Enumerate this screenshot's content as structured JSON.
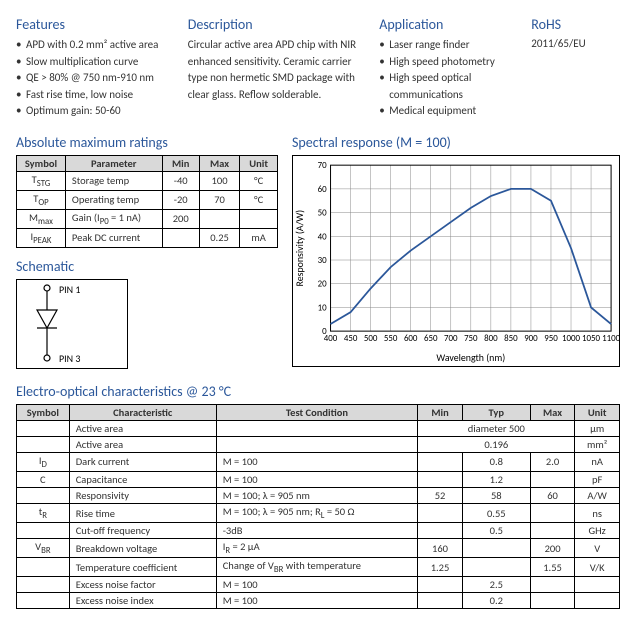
{
  "top": {
    "features": {
      "title": "Features",
      "items": [
        "APD with 0.2 mm² active area",
        "Slow multiplication curve",
        "QE > 80% @ 750 nm-910 nm",
        "Fast rise time, low noise",
        "Optimum gain: 50-60"
      ]
    },
    "description": {
      "title": "Description",
      "body": "Circular active area APD chip with NIR enhanced sensitivity. Ceramic carrier type non hermetic SMD package with clear glass. Reflow solderable."
    },
    "application": {
      "title": "Application",
      "items": [
        "Laser range finder",
        "High speed photometry",
        "High speed optical communications",
        "Medical equipment"
      ]
    },
    "rohs": {
      "title": "RoHS",
      "value": "2011/65/EU"
    }
  },
  "amr": {
    "title": "Absolute maximum ratings",
    "headers": {
      "symbol": "Symbol",
      "parameter": "Parameter",
      "min": "Min",
      "max": "Max",
      "unit": "Unit"
    },
    "rows": [
      {
        "symbol_html": "T<sub>STG</sub>",
        "parameter": "Storage temp",
        "min": "-40",
        "max": "100",
        "unit": "°C"
      },
      {
        "symbol_html": "T<sub>OP</sub>",
        "parameter": "Operating temp",
        "min": "-20",
        "max": "70",
        "unit": "°C"
      },
      {
        "symbol_html": "M<sub>max</sub>",
        "parameter_html": "Gain (I<sub>P0</sub> = 1 nA)",
        "min": "200",
        "max": "",
        "unit": ""
      },
      {
        "symbol_html": "I<sub>PEAK</sub>",
        "parameter": "Peak DC current",
        "min": "",
        "max": "0.25",
        "unit": "mA"
      }
    ]
  },
  "schematic": {
    "title": "Schematic",
    "pin1": "PIN 1",
    "pin3": "PIN 3"
  },
  "chart": {
    "title": "Spectral response (M = 100)",
    "xlabel": "Wavelength (nm)",
    "ylabel": "Responsivity (A/W)",
    "xlim": [
      400,
      1100
    ],
    "ylim": [
      0,
      70
    ],
    "xtick_step": 50,
    "ytick_step": 10,
    "line_color": "#2b579a",
    "grid_color": "#888888",
    "axis_color": "#000000",
    "font_size": 9,
    "points": [
      [
        400,
        3
      ],
      [
        450,
        8
      ],
      [
        500,
        18
      ],
      [
        550,
        27
      ],
      [
        600,
        34
      ],
      [
        650,
        40
      ],
      [
        700,
        46
      ],
      [
        750,
        52
      ],
      [
        800,
        57
      ],
      [
        850,
        60
      ],
      [
        900,
        60
      ],
      [
        950,
        55
      ],
      [
        1000,
        35
      ],
      [
        1050,
        10
      ],
      [
        1100,
        3
      ]
    ]
  },
  "eo": {
    "title": "Electro-optical characteristics @ 23 °C",
    "headers": {
      "symbol": "Symbol",
      "char": "Characteristic",
      "tc": "Test Condition",
      "min": "Min",
      "typ": "Typ",
      "max": "Max",
      "unit": "Unit"
    },
    "rows": [
      {
        "symbol": "",
        "char": "Active area",
        "tc": "",
        "min_colspan": 3,
        "typ_html": "diameter 500",
        "unit": "μm"
      },
      {
        "symbol": "",
        "char": "Active area",
        "tc": "",
        "min_colspan": 3,
        "typ_html": "0.196",
        "unit_html": "mm²"
      },
      {
        "symbol_html": "I<sub>D</sub>",
        "char": "Dark current",
        "tc": "M = 100",
        "min": "",
        "typ": "0.8",
        "max": "2.0",
        "unit": "nA"
      },
      {
        "symbol": "C",
        "char": "Capacitance",
        "tc": "M = 100",
        "min": "",
        "typ": "1.2",
        "max": "",
        "unit": "pF"
      },
      {
        "symbol": "",
        "char": "Responsivity",
        "tc": "M = 100; λ = 905 nm",
        "min": "52",
        "typ": "58",
        "max": "60",
        "unit": "A/W"
      },
      {
        "symbol_html": "t<sub>R</sub>",
        "char": "Rise time",
        "tc_html": "M = 100; λ = 905 nm; R<sub>L</sub> = 50 Ω",
        "min": "",
        "typ": "0.55",
        "max": "",
        "unit": "ns"
      },
      {
        "symbol": "",
        "char": "Cut-off frequency",
        "tc": "-3dB",
        "min": "",
        "typ": "0.5",
        "max": "",
        "unit": "GHz"
      },
      {
        "symbol_html": "V<sub>BR</sub>",
        "char": "Breakdown voltage",
        "tc_html": "I<sub>R</sub> = 2 μA",
        "min": "160",
        "typ": "",
        "max": "200",
        "unit": "V"
      },
      {
        "symbol": "",
        "char": "Temperature coefficient",
        "tc_html": "Change of V<sub>BR</sub> with temperature",
        "min": "1.25",
        "typ": "",
        "max": "1.55",
        "unit": "V/K"
      },
      {
        "symbol": "",
        "char": "Excess noise factor",
        "tc": "M = 100",
        "min": "",
        "typ": "2.5",
        "max": "",
        "unit": ""
      },
      {
        "symbol": "",
        "char": "Excess noise index",
        "tc": "M = 100",
        "min": "",
        "typ": "0.2",
        "max": "",
        "unit": ""
      }
    ]
  }
}
